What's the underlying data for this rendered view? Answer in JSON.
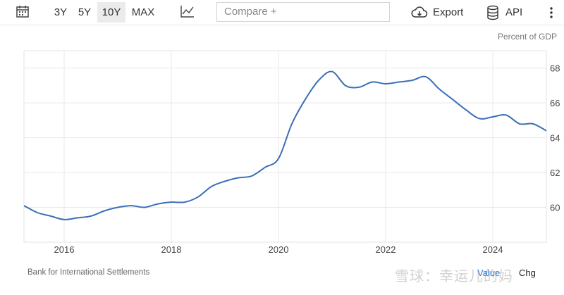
{
  "toolbar": {
    "calendar_icon": "calendar-icon",
    "ranges": [
      "3Y",
      "5Y",
      "10Y",
      "MAX"
    ],
    "active_range": "10Y",
    "chart_type_icon": "line-chart-icon",
    "compare_placeholder": "Compare +",
    "export_icon": "cloud-download-icon",
    "export_label": "Export",
    "api_icon": "database-icon",
    "api_label": "API",
    "more_icon": "more-vertical-icon"
  },
  "unit_label": "Percent of GDP",
  "source": "Bank for International Settlements",
  "tabs": {
    "value": "Value",
    "chg": "Chg"
  },
  "watermark": "雪球：幸运儿的妈",
  "colors": {
    "line": "#3a6fb6",
    "active_tab": "#2c7bd6",
    "grid": "#e8e8e8"
  },
  "chart_data": {
    "type": "line",
    "title": "",
    "xlabel": "",
    "ylabel": "Percent of GDP",
    "xlim": [
      2015.25,
      2025.0
    ],
    "ylim": [
      58.0,
      69.0
    ],
    "x_ticks": [
      2016,
      2018,
      2020,
      2022,
      2024
    ],
    "y_ticks": [
      60,
      62,
      64,
      66,
      68
    ],
    "y_axis_side": "right",
    "grid": "horizontal",
    "series": [
      {
        "name": "",
        "x": [
          2015.25,
          2015.5,
          2015.75,
          2016.0,
          2016.25,
          2016.5,
          2016.75,
          2017.0,
          2017.25,
          2017.5,
          2017.75,
          2018.0,
          2018.25,
          2018.5,
          2018.75,
          2019.0,
          2019.25,
          2019.5,
          2019.75,
          2020.0,
          2020.25,
          2020.5,
          2020.75,
          2021.0,
          2021.25,
          2021.5,
          2021.75,
          2022.0,
          2022.25,
          2022.5,
          2022.75,
          2023.0,
          2023.25,
          2023.5,
          2023.75,
          2024.0,
          2024.25,
          2024.5,
          2024.75,
          2025.0
        ],
        "y": [
          60.1,
          59.7,
          59.5,
          59.3,
          59.4,
          59.5,
          59.8,
          60.0,
          60.1,
          60.0,
          60.2,
          60.3,
          60.3,
          60.6,
          61.2,
          61.5,
          61.7,
          61.8,
          62.3,
          62.8,
          64.8,
          66.2,
          67.3,
          67.8,
          67.0,
          66.9,
          67.2,
          67.1,
          67.2,
          67.3,
          67.5,
          66.8,
          66.2,
          65.6,
          65.1,
          65.2,
          65.3,
          64.8,
          64.8,
          64.4
        ]
      }
    ]
  }
}
